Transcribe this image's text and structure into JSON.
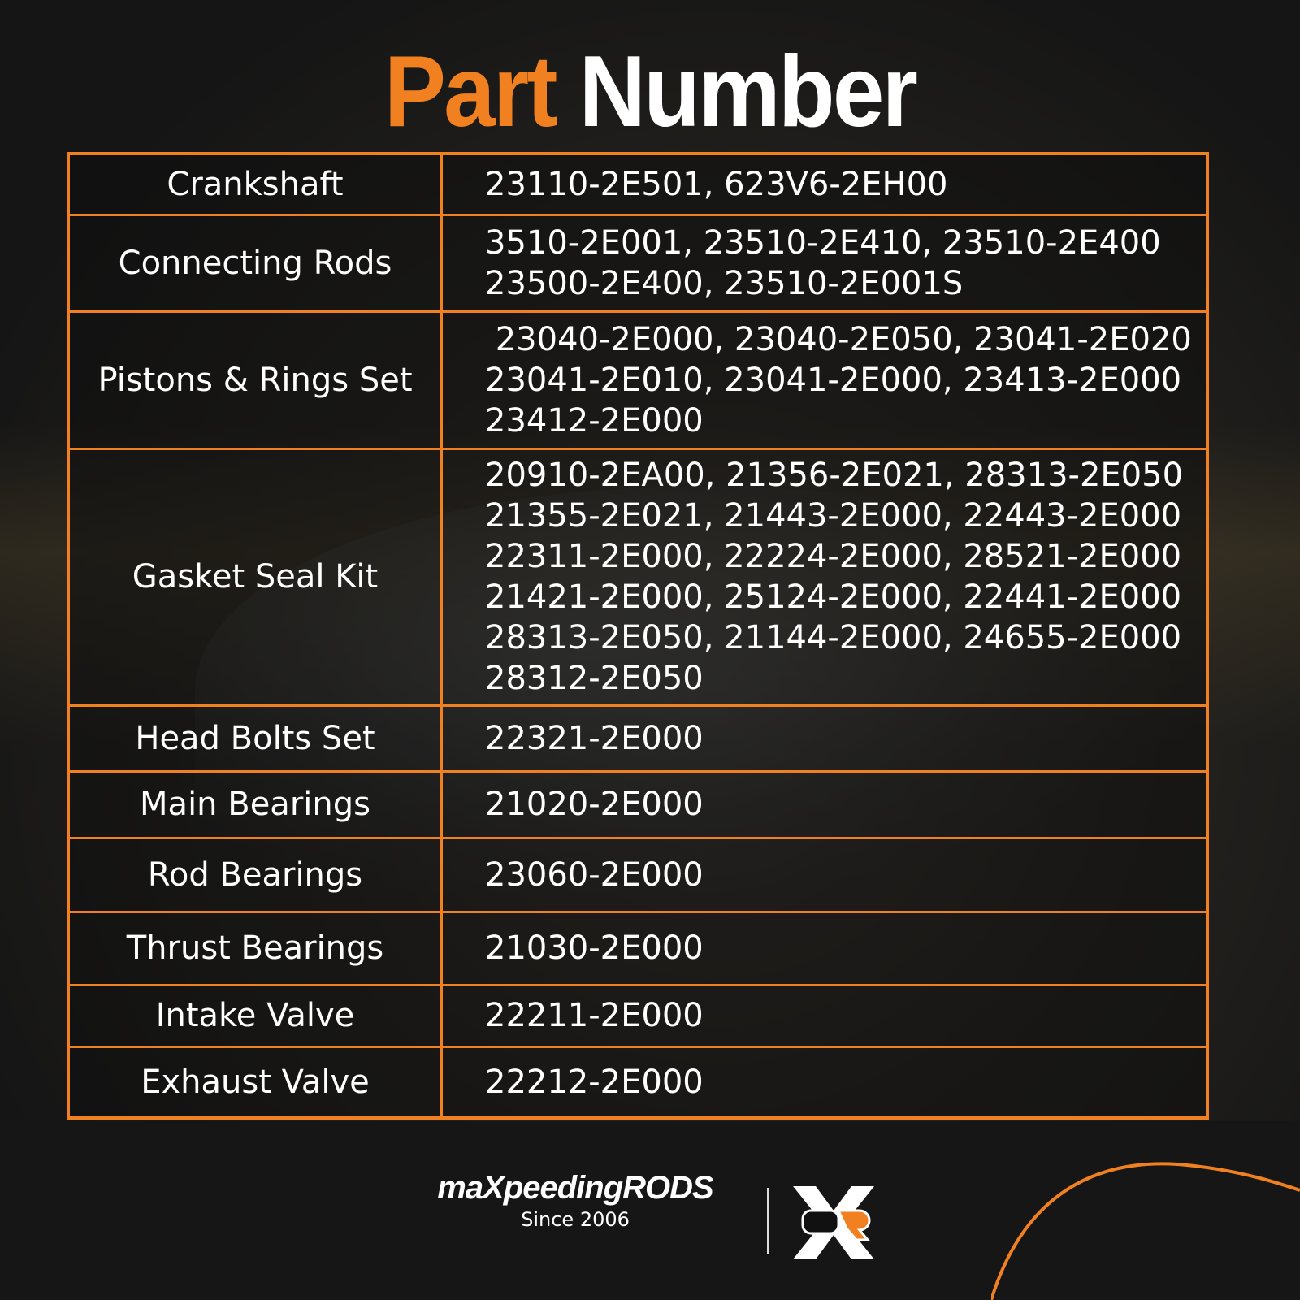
{
  "title": {
    "part1": "Part",
    "part2": "Number"
  },
  "colors": {
    "accent": "#f08020",
    "text": "#ffffff",
    "background": "#1a1a1a"
  },
  "rows": [
    {
      "label": "Crankshaft",
      "lines": [
        "23110-2E501, 623V6-2EH00"
      ]
    },
    {
      "label": "Connecting Rods",
      "lines": [
        "3510-2E001, 23510-2E410, 23510-2E400",
        "23500-2E400, 23510-2E001S"
      ]
    },
    {
      "label": "Pistons & Rings Set",
      "lines": [
        " 23040-2E000, 23040-2E050, 23041-2E020",
        "23041-2E010, 23041-2E000, 23413-2E000",
        "23412-2E000"
      ]
    },
    {
      "label": "Gasket Seal Kit",
      "lines": [
        "20910-2EA00, 21356-2E021, 28313-2E050",
        "21355-2E021, 21443-2E000, 22443-2E000",
        "22311-2E000, 22224-2E000, 28521-2E000",
        "21421-2E000, 25124-2E000, 22441-2E000",
        "28313-2E050, 21144-2E000, 24655-2E000",
        "28312-2E050"
      ]
    },
    {
      "label": "Head Bolts Set",
      "lines": [
        "22321-2E000"
      ]
    },
    {
      "label": "Main Bearings",
      "lines": [
        "21020-2E000"
      ]
    },
    {
      "label": "Rod Bearings",
      "lines": [
        "23060-2E000"
      ]
    },
    {
      "label": "Thrust Bearings",
      "lines": [
        "21030-2E000"
      ]
    },
    {
      "label": "Intake Valve",
      "lines": [
        "22211-2E000"
      ]
    },
    {
      "label": "Exhaust Valve",
      "lines": [
        "22212-2E000"
      ]
    }
  ],
  "footer": {
    "brand": "maXpeedingRODS",
    "since": "Since 2006",
    "icon": "xor-logo-icon"
  }
}
